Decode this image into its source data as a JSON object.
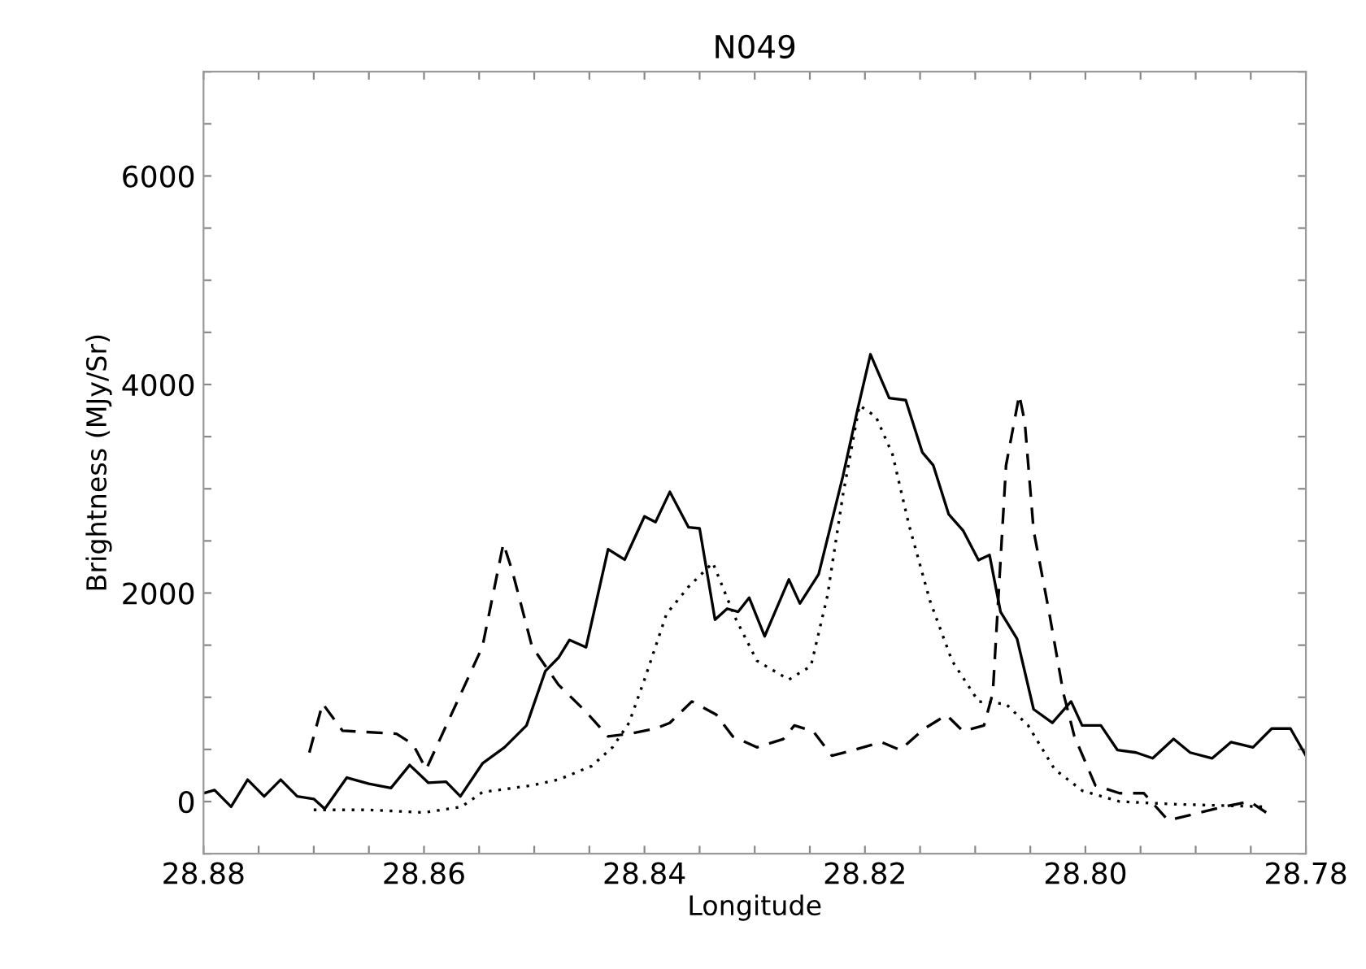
{
  "chart_data": {
    "type": "line",
    "title": "N049",
    "xlabel": "Longitude",
    "ylabel": "Brightness (MJy/Sr)",
    "xlim": [
      28.88,
      28.78
    ],
    "ylim": [
      -500,
      7000
    ],
    "xticks": [
      {
        "value": 28.88,
        "label": "28.88"
      },
      {
        "value": 28.875,
        "label": null
      },
      {
        "value": 28.87,
        "label": null
      },
      {
        "value": 28.865,
        "label": null
      },
      {
        "value": 28.86,
        "label": "28.86"
      },
      {
        "value": 28.855,
        "label": null
      },
      {
        "value": 28.85,
        "label": null
      },
      {
        "value": 28.845,
        "label": null
      },
      {
        "value": 28.84,
        "label": "28.84"
      },
      {
        "value": 28.835,
        "label": null
      },
      {
        "value": 28.83,
        "label": null
      },
      {
        "value": 28.825,
        "label": null
      },
      {
        "value": 28.82,
        "label": "28.82"
      },
      {
        "value": 28.815,
        "label": null
      },
      {
        "value": 28.81,
        "label": null
      },
      {
        "value": 28.805,
        "label": null
      },
      {
        "value": 28.8,
        "label": "28.80"
      },
      {
        "value": 28.795,
        "label": null
      },
      {
        "value": 28.79,
        "label": null
      },
      {
        "value": 28.785,
        "label": null
      },
      {
        "value": 28.78,
        "label": "28.78"
      }
    ],
    "yticks": [
      {
        "value": -500,
        "label": null
      },
      0,
      {
        "value": 500,
        "label": null
      },
      {
        "value": 1000,
        "label": null
      },
      {
        "value": 1500,
        "label": null
      },
      2000,
      {
        "value": 2500,
        "label": null
      },
      {
        "value": 3000,
        "label": null
      },
      {
        "value": 3500,
        "label": null
      },
      4000,
      {
        "value": 4500,
        "label": null
      },
      {
        "value": 5000,
        "label": null
      },
      {
        "value": 5500,
        "label": null
      },
      6000,
      {
        "value": 6500,
        "label": null
      },
      {
        "value": 7000,
        "label": null
      }
    ],
    "grid": false,
    "legend": false,
    "series": [
      {
        "color": "#000000",
        "line_style": "solid",
        "x": [
          28.88,
          28.879,
          28.8775,
          28.876,
          28.8745,
          28.873,
          28.8715,
          28.87,
          28.869,
          28.867,
          28.865,
          28.863,
          28.8613,
          28.8596,
          28.858,
          28.8567,
          28.8547,
          28.8527,
          28.8507,
          28.849,
          28.8478,
          28.8468,
          28.8453,
          28.8433,
          28.8418,
          28.84,
          28.839,
          28.8377,
          28.836,
          28.835,
          28.8336,
          28.8325,
          28.8315,
          28.8305,
          28.8291,
          28.8269,
          28.8259,
          28.8242,
          28.822,
          28.8207,
          28.8195,
          28.8178,
          28.8163,
          28.8148,
          28.8138,
          28.8124,
          28.8111,
          28.8097,
          28.8087,
          28.8077,
          28.8062,
          28.8047,
          28.803,
          28.8013,
          28.8003,
          28.7986,
          28.7971,
          28.7954,
          28.7939,
          28.792,
          28.7905,
          28.7885,
          28.7868,
          28.7848,
          28.7831,
          28.7814,
          28.78
        ],
        "values": [
          80,
          110,
          -50,
          210,
          50,
          210,
          50,
          25,
          -70,
          230,
          170,
          130,
          350,
          180,
          190,
          50,
          365,
          520,
          730,
          1250,
          1380,
          1550,
          1480,
          2420,
          2320,
          2735,
          2680,
          2970,
          2630,
          2620,
          1745,
          1850,
          1820,
          1955,
          1585,
          2130,
          1900,
          2180,
          3120,
          3745,
          4290,
          3870,
          3850,
          3350,
          3225,
          2755,
          2600,
          2315,
          2365,
          1820,
          1560,
          885,
          755,
          960,
          730,
          730,
          495,
          470,
          415,
          600,
          470,
          415,
          570,
          520,
          700,
          700,
          440
        ]
      },
      {
        "color": "#000000",
        "line_style": "dashed",
        "x": [
          28.8704,
          28.8692,
          28.8674,
          28.8625,
          28.861,
          28.8598,
          28.859,
          28.8547,
          28.8528,
          28.852,
          28.8502,
          28.8478,
          28.8453,
          28.8433,
          28.8414,
          28.839,
          28.8377,
          28.8357,
          28.8335,
          28.832,
          28.8298,
          28.8274,
          28.8264,
          28.8247,
          28.823,
          28.821,
          28.8185,
          28.8168,
          28.8146,
          28.8126,
          28.8111,
          28.8092,
          28.8084,
          28.8072,
          28.806,
          28.8055,
          28.8047,
          28.8033,
          28.802,
          28.801,
          28.7991,
          28.7969,
          28.7947,
          28.7925,
          28.7905,
          28.7875,
          28.7851,
          28.7836
        ],
        "values": [
          470,
          940,
          680,
          650,
          550,
          310,
          495,
          1485,
          2475,
          2215,
          1485,
          1120,
          860,
          625,
          650,
          700,
          755,
          960,
          835,
          625,
          520,
          600,
          730,
          675,
          440,
          495,
          570,
          495,
          700,
          830,
          675,
          730,
          1040,
          3225,
          3900,
          3640,
          2600,
          1820,
          1040,
          625,
          155,
          80,
          80,
          -180,
          -130,
          -50,
          0,
          -105
        ]
      },
      {
        "color": "#000000",
        "line_style": "dotted",
        "x": [
          28.87,
          28.865,
          28.86,
          28.8566,
          28.8547,
          28.8502,
          28.8478,
          28.8448,
          28.8429,
          28.8414,
          28.84,
          28.838,
          28.836,
          28.8338,
          28.8318,
          28.8298,
          28.8269,
          28.8249,
          28.8234,
          28.822,
          28.8205,
          28.819,
          28.8175,
          28.816,
          28.8141,
          28.8121,
          28.8097,
          28.8072,
          28.8052,
          28.8028,
          28.8003,
          28.7969,
          28.792,
          28.7836
        ],
        "values": [
          -80,
          -80,
          -105,
          -50,
          90,
          155,
          210,
          340,
          520,
          755,
          1170,
          1800,
          2060,
          2290,
          1770,
          1350,
          1170,
          1300,
          1975,
          2940,
          3800,
          3690,
          3330,
          2650,
          1925,
          1350,
          960,
          935,
          730,
          310,
          105,
          0,
          -25,
          -50
        ]
      }
    ]
  }
}
